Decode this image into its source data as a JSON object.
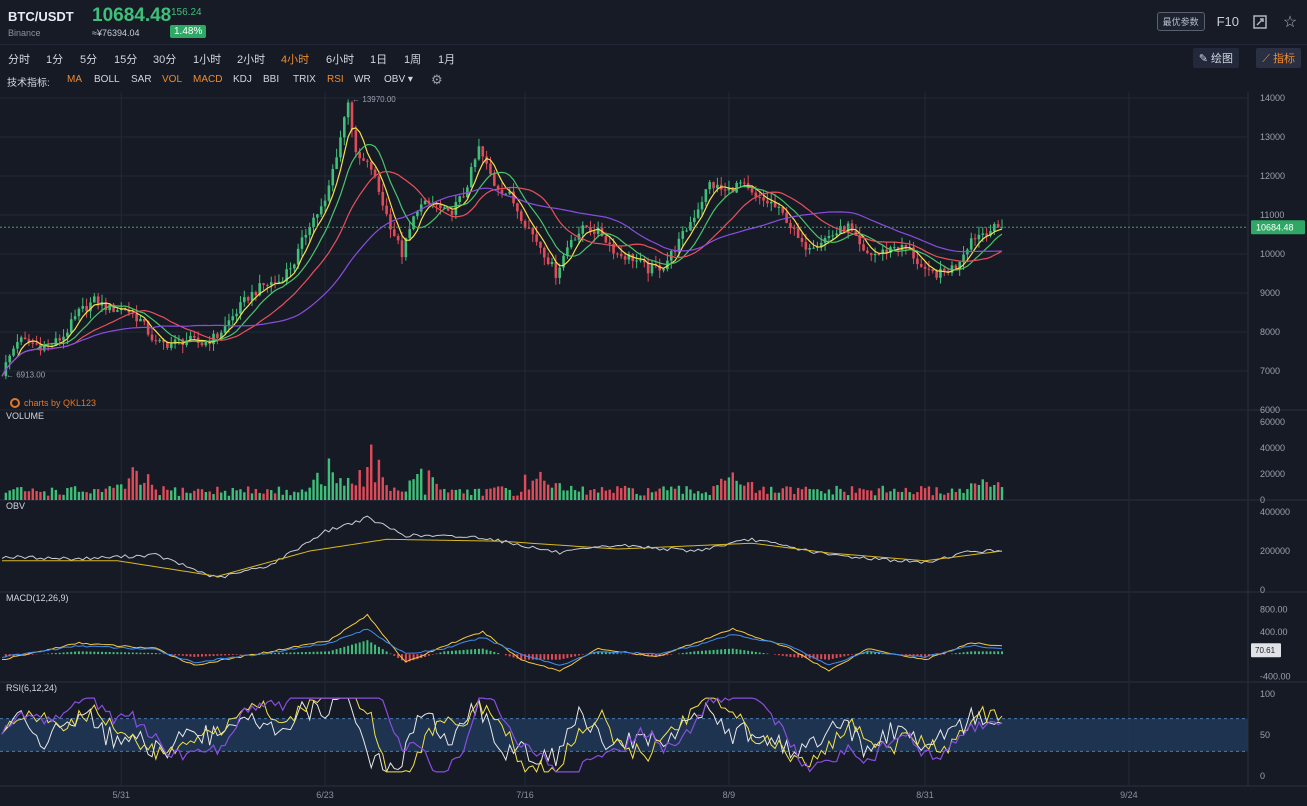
{
  "header": {
    "pair": "BTC/USDT",
    "exchange": "Binance",
    "price": "10684.48",
    "change": "156.24",
    "price_cny": "≈¥76394.04",
    "change_pct": "1.48%",
    "prefs_label": "最优参数",
    "f10_label": "F10"
  },
  "intervals": [
    {
      "label": "分时",
      "active": false
    },
    {
      "label": "1分",
      "active": false
    },
    {
      "label": "5分",
      "active": false
    },
    {
      "label": "15分",
      "active": false
    },
    {
      "label": "30分",
      "active": false
    },
    {
      "label": "1小时",
      "active": false
    },
    {
      "label": "2小时",
      "active": false
    },
    {
      "label": "4小时",
      "active": true
    },
    {
      "label": "6小时",
      "active": false
    },
    {
      "label": "1日",
      "active": false
    },
    {
      "label": "1周",
      "active": false
    },
    {
      "label": "1月",
      "active": false
    }
  ],
  "toolbar": {
    "draw_label": "绘图",
    "indicators_label": "指标"
  },
  "indicator_bar": {
    "label": "技术指标:",
    "items": [
      {
        "label": "MA",
        "active": true
      },
      {
        "label": "BOLL",
        "active": false
      },
      {
        "label": "SAR",
        "active": false
      },
      {
        "label": "VOL",
        "active": true
      },
      {
        "label": "MACD",
        "active": true
      },
      {
        "label": "KDJ",
        "active": false
      },
      {
        "label": "BBI",
        "active": false
      },
      {
        "label": "TRIX",
        "active": false
      },
      {
        "label": "RSI",
        "active": true
      },
      {
        "label": "WR",
        "active": false
      },
      {
        "label": "OBV ▾",
        "active": false
      }
    ]
  },
  "watermark": "charts by QKL123",
  "colors": {
    "up": "#3fbf7a",
    "down": "#e04b5a",
    "ma_fast": "#f5e14a",
    "ma_mid": "#49c46b",
    "ma_slow": "#e8505b",
    "ma_long": "#8a4de0",
    "obv": "#c8ccd6",
    "obv_ma": "#d8b820",
    "macd_dif": "#f5c842",
    "macd_dea": "#3f8ef0",
    "rsi_band": "#1f3a5a"
  },
  "chart_data": [
    {
      "type": "candlestick",
      "pane": "price",
      "x_ticks": [
        "5/31",
        "6/23",
        "7/16",
        "8/9",
        "8/31",
        "9/24"
      ],
      "ylim": [
        6000,
        14000
      ],
      "y_ticks": [
        14000,
        13000,
        12000,
        11000,
        10000,
        9000,
        8000,
        7000,
        6000
      ],
      "current_price": "10684.48",
      "annotations": [
        {
          "text": "← 13970.00",
          "price": 13970
        },
        {
          "text": "← 6913.00",
          "price": 6913
        }
      ],
      "close_path": [
        [
          0,
          6950
        ],
        [
          4,
          7800
        ],
        [
          8,
          7700
        ],
        [
          12,
          7600
        ],
        [
          16,
          7900
        ],
        [
          20,
          8500
        ],
        [
          24,
          8800
        ],
        [
          28,
          8600
        ],
        [
          32,
          8600
        ],
        [
          36,
          8300
        ],
        [
          40,
          7700
        ],
        [
          44,
          7700
        ],
        [
          48,
          7800
        ],
        [
          52,
          7700
        ],
        [
          56,
          7900
        ],
        [
          60,
          8400
        ],
        [
          64,
          8900
        ],
        [
          68,
          9200
        ],
        [
          72,
          9300
        ],
        [
          76,
          9800
        ],
        [
          80,
          10800
        ],
        [
          84,
          11300
        ],
        [
          88,
          13000
        ],
        [
          90,
          13970
        ],
        [
          92,
          12500
        ],
        [
          96,
          12200
        ],
        [
          100,
          11000
        ],
        [
          104,
          10000
        ],
        [
          108,
          11200
        ],
        [
          112,
          11300
        ],
        [
          116,
          11000
        ],
        [
          120,
          11500
        ],
        [
          124,
          12700
        ],
        [
          128,
          11800
        ],
        [
          132,
          11500
        ],
        [
          136,
          10800
        ],
        [
          140,
          10200
        ],
        [
          144,
          9500
        ],
        [
          148,
          10400
        ],
        [
          152,
          10700
        ],
        [
          156,
          10500
        ],
        [
          160,
          10000
        ],
        [
          164,
          9900
        ],
        [
          168,
          9600
        ],
        [
          172,
          9700
        ],
        [
          176,
          10300
        ],
        [
          180,
          11000
        ],
        [
          184,
          11800
        ],
        [
          188,
          11600
        ],
        [
          192,
          11800
        ],
        [
          196,
          11400
        ],
        [
          200,
          11300
        ],
        [
          204,
          10900
        ],
        [
          208,
          10200
        ],
        [
          212,
          10300
        ],
        [
          216,
          10500
        ],
        [
          220,
          10700
        ],
        [
          224,
          10000
        ],
        [
          228,
          10000
        ],
        [
          232,
          10200
        ],
        [
          236,
          10100
        ],
        [
          240,
          9500
        ],
        [
          244,
          9500
        ],
        [
          248,
          9700
        ],
        [
          252,
          10400
        ],
        [
          256,
          10600
        ],
        [
          260,
          10684.48
        ]
      ]
    },
    {
      "type": "bar",
      "pane": "volume",
      "title": "VOLUME",
      "ylim": [
        0,
        60000
      ],
      "y_ticks": [
        60000,
        40000,
        20000,
        0
      ],
      "peaks": [
        [
          35,
          22000
        ],
        [
          84,
          28000
        ],
        [
          95,
          45000
        ],
        [
          110,
          22000
        ],
        [
          140,
          30000
        ],
        [
          190,
          20000
        ],
        [
          255,
          15000
        ]
      ]
    },
    {
      "type": "line",
      "pane": "obv",
      "title": "OBV",
      "ylim": [
        0,
        400000
      ],
      "y_ticks": [
        400000,
        200000,
        0
      ],
      "series": [
        {
          "values": [
            [
              0,
              170000
            ],
            [
              20,
              160000
            ],
            [
              40,
              180000
            ],
            [
              56,
              60000
            ],
            [
              70,
              130000
            ],
            [
              84,
              300000
            ],
            [
              95,
              370000
            ],
            [
              105,
              280000
            ],
            [
              125,
              270000
            ],
            [
              145,
              190000
            ],
            [
              160,
              230000
            ],
            [
              180,
              200000
            ],
            [
              195,
              260000
            ],
            [
              215,
              180000
            ],
            [
              240,
              140000
            ],
            [
              252,
              200000
            ],
            [
              260,
              200000
            ]
          ]
        },
        {
          "values": [
            [
              0,
              150000
            ],
            [
              30,
              150000
            ],
            [
              56,
              70000
            ],
            [
              80,
              200000
            ],
            [
              100,
              260000
            ],
            [
              130,
              250000
            ],
            [
              160,
              210000
            ],
            [
              195,
              240000
            ],
            [
              215,
              190000
            ],
            [
              240,
              150000
            ],
            [
              260,
              200000
            ]
          ]
        }
      ]
    },
    {
      "type": "line",
      "pane": "macd",
      "title": "MACD(12,26,9)",
      "ylim": [
        -500,
        900
      ],
      "y_ticks": [
        800,
        400,
        0,
        -400
      ],
      "current_value": "70.61",
      "series": [
        {
          "values": [
            [
              0,
              -100
            ],
            [
              20,
              200
            ],
            [
              40,
              100
            ],
            [
              50,
              -200
            ],
            [
              70,
              50
            ],
            [
              85,
              250
            ],
            [
              95,
              700
            ],
            [
              105,
              -150
            ],
            [
              115,
              150
            ],
            [
              125,
              400
            ],
            [
              135,
              -100
            ],
            [
              145,
              -300
            ],
            [
              155,
              100
            ],
            [
              170,
              -50
            ],
            [
              180,
              200
            ],
            [
              190,
              450
            ],
            [
              205,
              100
            ],
            [
              215,
              -300
            ],
            [
              225,
              100
            ],
            [
              240,
              -100
            ],
            [
              252,
              200
            ],
            [
              260,
              150
            ]
          ]
        },
        {
          "values": [
            [
              0,
              -50
            ],
            [
              20,
              150
            ],
            [
              40,
              80
            ],
            [
              50,
              -150
            ],
            [
              70,
              30
            ],
            [
              85,
              200
            ],
            [
              95,
              450
            ],
            [
              105,
              0
            ],
            [
              115,
              100
            ],
            [
              125,
              300
            ],
            [
              135,
              0
            ],
            [
              145,
              -200
            ],
            [
              155,
              50
            ],
            [
              170,
              0
            ],
            [
              180,
              150
            ],
            [
              190,
              350
            ],
            [
              205,
              150
            ],
            [
              215,
              -200
            ],
            [
              225,
              50
            ],
            [
              240,
              -50
            ],
            [
              252,
              150
            ],
            [
              260,
              100
            ]
          ]
        }
      ]
    },
    {
      "type": "line",
      "pane": "rsi",
      "title": "RSI(6,12,24)",
      "ylim": [
        0,
        100
      ],
      "y_ticks": [
        100,
        50,
        0
      ],
      "band": [
        30,
        70
      ]
    }
  ]
}
